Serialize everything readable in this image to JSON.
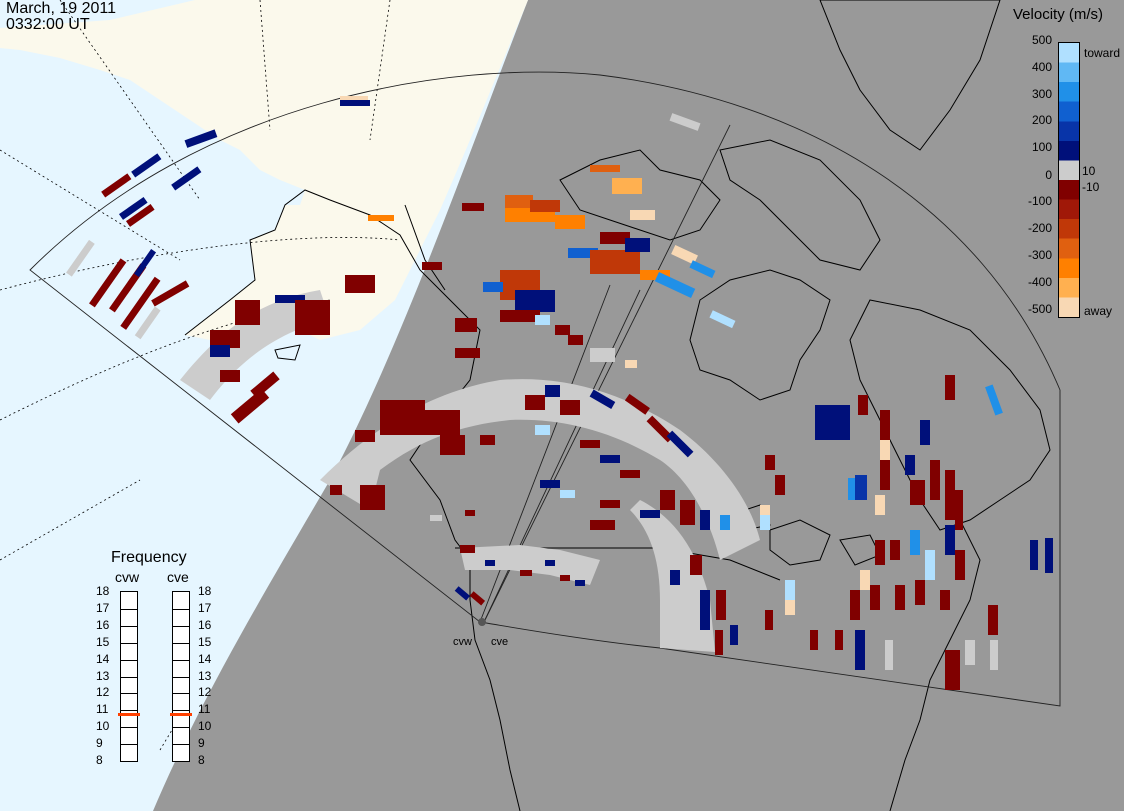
{
  "header": {
    "date": "March, 19 2011",
    "time": "0332:00 UT"
  },
  "colorbar": {
    "title": "Velocity (m/s)",
    "ticks": [
      "500",
      "400",
      "300",
      "200",
      "100",
      "10",
      "0",
      "-10",
      "-100",
      "-200",
      "-300",
      "-400",
      "-500"
    ],
    "toward_label": "toward",
    "away_label": "away",
    "colors": [
      "#f8d8b4",
      "#ffb050",
      "#ff8000",
      "#e06010",
      "#c03808",
      "#a01808",
      "#800000",
      "#cccccc",
      "#00107a",
      "#0834a8",
      "#1060d0",
      "#2090e8",
      "#60b8f4",
      "#b0e0ff"
    ]
  },
  "frequency": {
    "title": "Frequency",
    "left_label": "cvw",
    "right_label": "cve",
    "labels": [
      "18",
      "17",
      "16",
      "15",
      "14",
      "13",
      "12",
      "11",
      "10",
      "9",
      "8"
    ],
    "cvw_value": 11,
    "cve_value": 11,
    "marker_color": "#ff4000"
  },
  "radars": {
    "west": "cvw",
    "east": "cve"
  },
  "map_colors": {
    "night": "#999999",
    "land": "#fbf9ec",
    "ocean": "#e6f6ff",
    "scatter": "#cccccc"
  }
}
